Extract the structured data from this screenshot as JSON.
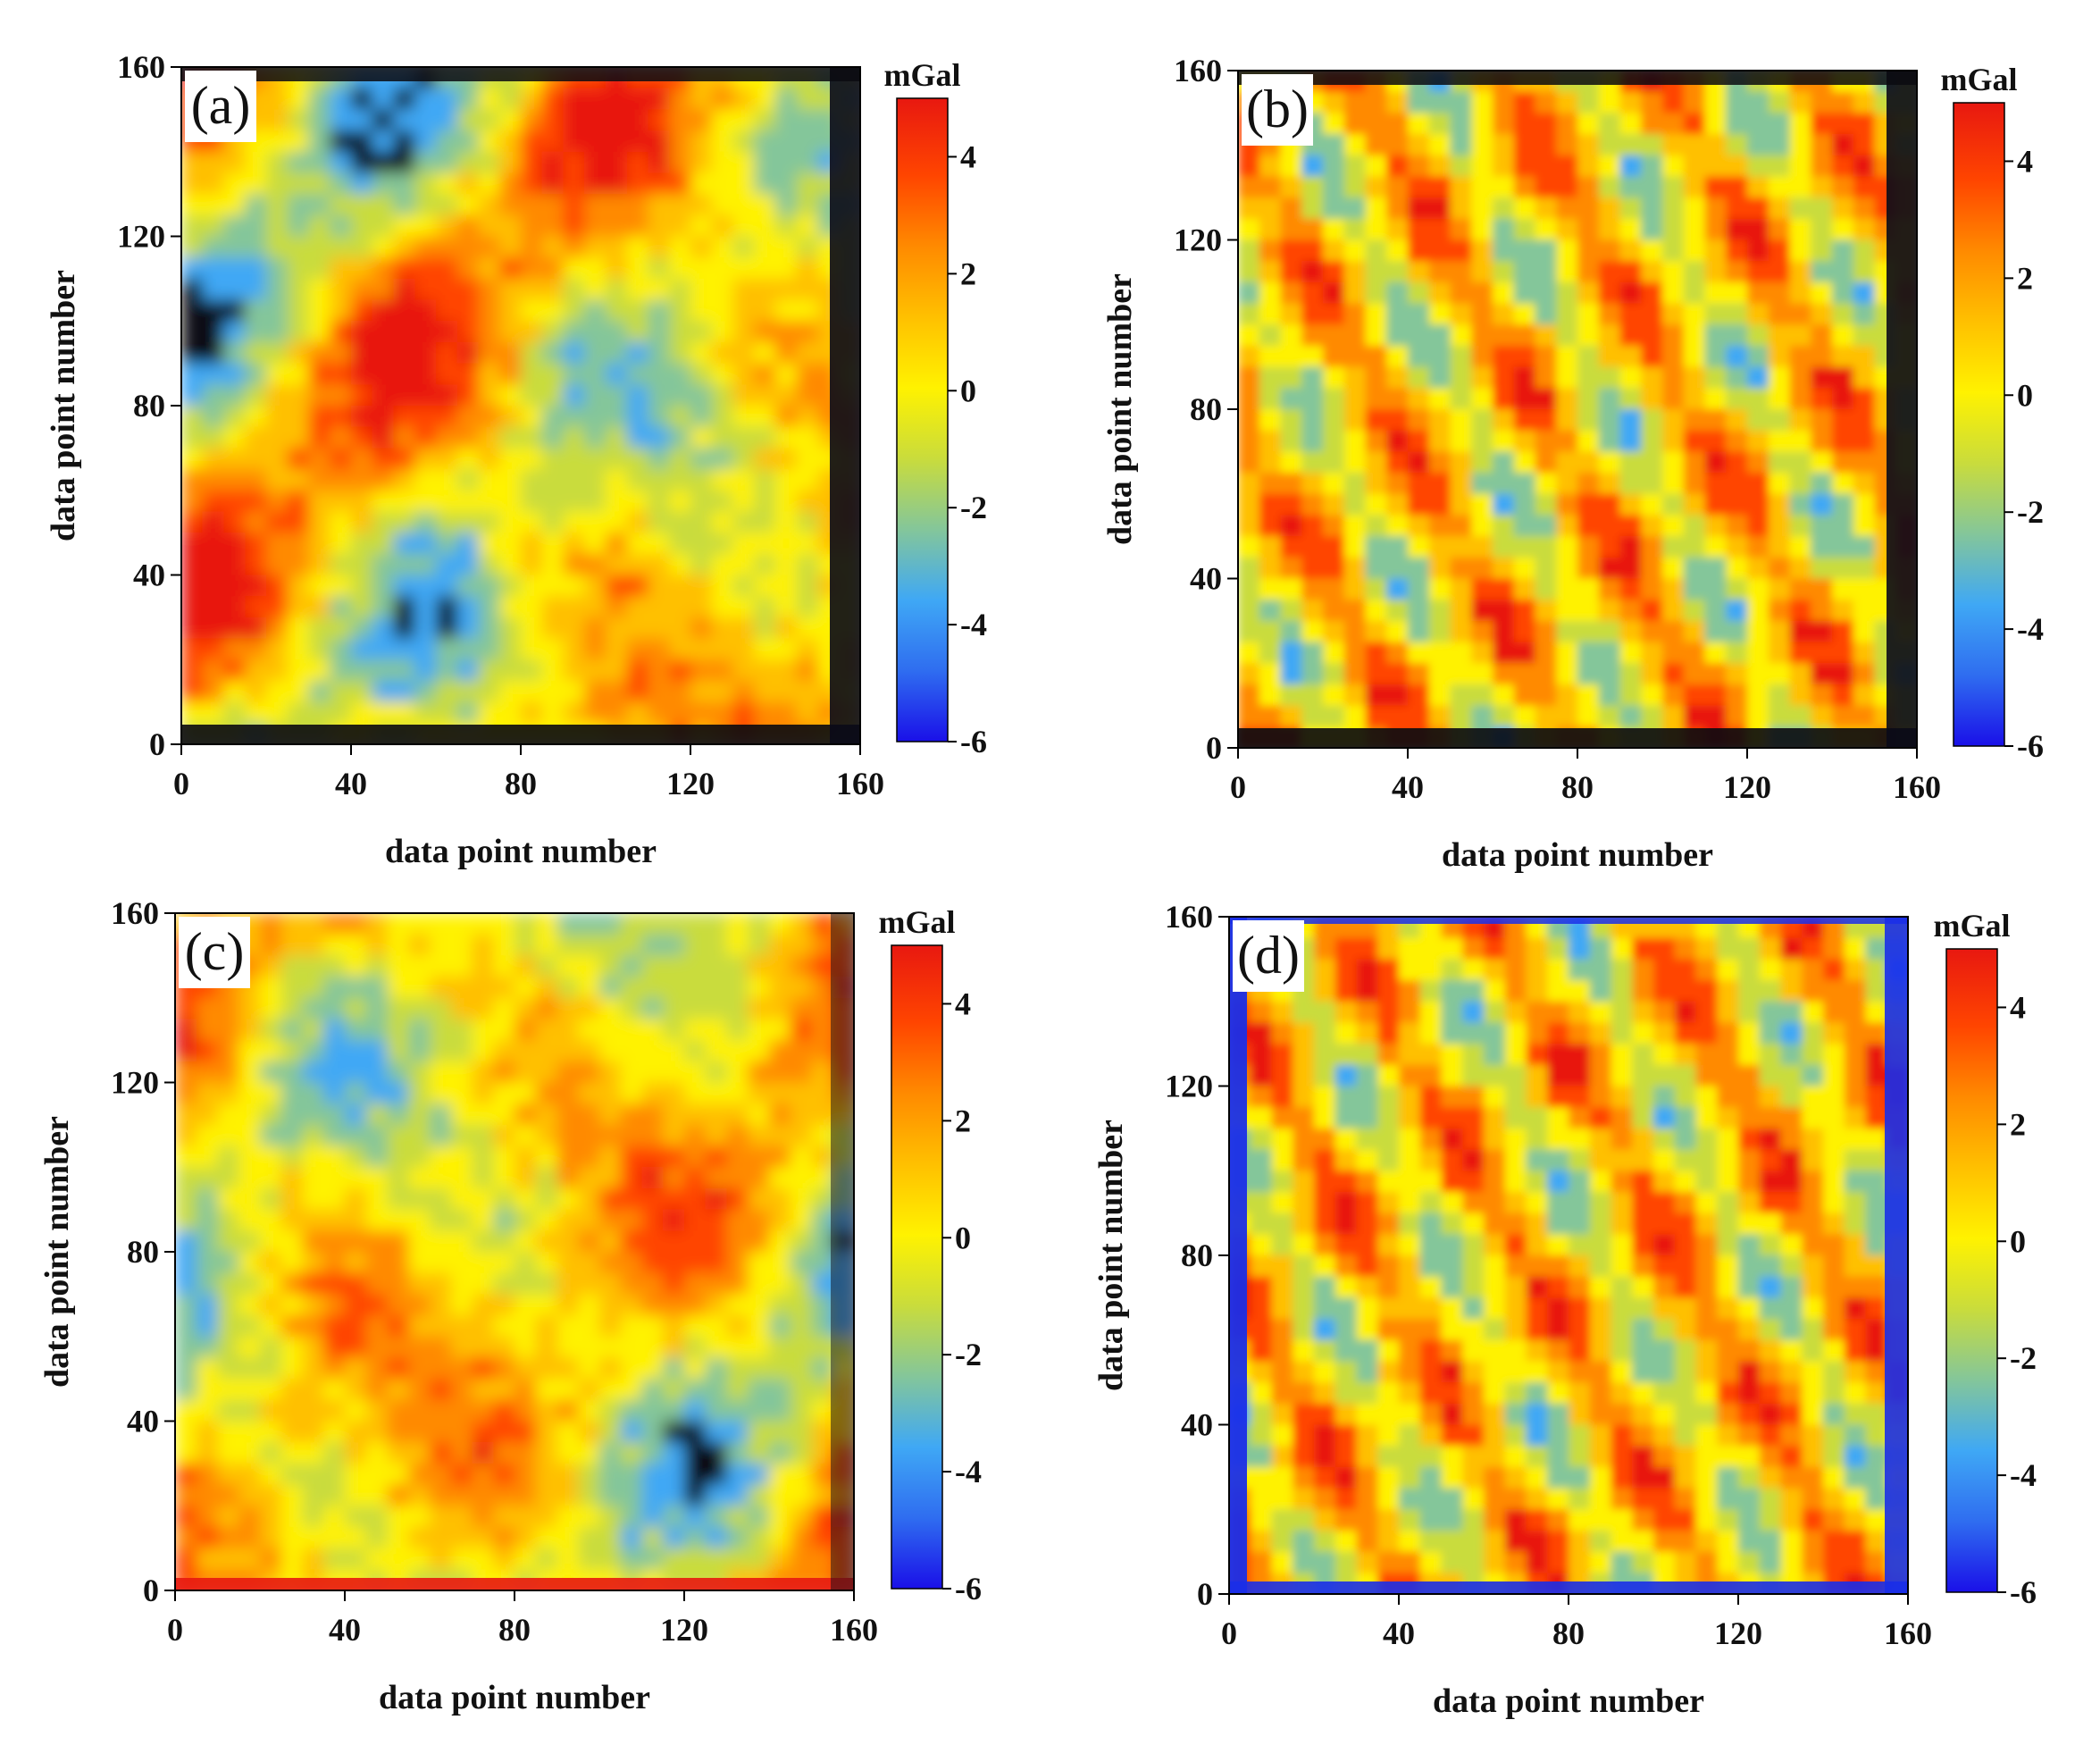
{
  "chart_data": [
    {
      "type": "heatmap",
      "panel_label": "(a)",
      "xlabel": "data point number",
      "ylabel": "data point number",
      "xlim": [
        0,
        160
      ],
      "ylim": [
        0,
        160
      ],
      "x_ticks": [
        "0",
        "40",
        "80",
        "120",
        "160"
      ],
      "y_ticks": [
        "0",
        "40",
        "80",
        "120",
        "160"
      ],
      "colorbar": {
        "label": "mGal",
        "range": [
          -6,
          5
        ],
        "ticks": [
          "4",
          "2",
          "0",
          "-2",
          "-4",
          "-6"
        ]
      },
      "pattern": "smooth",
      "border": "dark",
      "seed": 3
    },
    {
      "type": "heatmap",
      "panel_label": "(b)",
      "xlabel": "data point number",
      "ylabel": "data point number",
      "xlim": [
        0,
        160
      ],
      "ylim": [
        0,
        160
      ],
      "x_ticks": [
        "0",
        "40",
        "80",
        "120",
        "160"
      ],
      "y_ticks": [
        "0",
        "40",
        "80",
        "120",
        "160"
      ],
      "colorbar": {
        "label": "mGal",
        "range": [
          -6,
          5
        ],
        "ticks": [
          "4",
          "2",
          "0",
          "-2",
          "-4",
          "-6"
        ]
      },
      "pattern": "diagonal",
      "border": "dark",
      "seed": 7
    },
    {
      "type": "heatmap",
      "panel_label": "(c)",
      "xlabel": "data point number",
      "ylabel": "data point number",
      "xlim": [
        0,
        160
      ],
      "ylim": [
        0,
        160
      ],
      "x_ticks": [
        "0",
        "40",
        "80",
        "120",
        "160"
      ],
      "y_ticks": [
        "0",
        "40",
        "80",
        "120",
        "160"
      ],
      "colorbar": {
        "label": "mGal",
        "range": [
          -6,
          5
        ],
        "ticks": [
          "4",
          "2",
          "0",
          "-2",
          "-4",
          "-6"
        ]
      },
      "pattern": "smooth",
      "border": "red",
      "seed": 11
    },
    {
      "type": "heatmap",
      "panel_label": "(d)",
      "xlabel": "data point number",
      "ylabel": "data point number",
      "xlim": [
        0,
        160
      ],
      "ylim": [
        0,
        160
      ],
      "x_ticks": [
        "0",
        "40",
        "80",
        "120",
        "160"
      ],
      "y_ticks": [
        "0",
        "40",
        "80",
        "120",
        "160"
      ],
      "colorbar": {
        "label": "mGal",
        "range": [
          -6,
          5
        ],
        "ticks": [
          "4",
          "2",
          "0",
          "-2",
          "-4",
          "-6"
        ]
      },
      "pattern": "diagonal",
      "border": "blue",
      "seed": 19
    }
  ],
  "colors": {
    "colormap": [
      "#1a10e8",
      "#2f6df0",
      "#3fa8f5",
      "#84c69a",
      "#c9dc3c",
      "#fff200",
      "#ffc000",
      "#ff8a00",
      "#ff4500",
      "#e81810"
    ],
    "frame": "#000000",
    "text": "#111111"
  }
}
